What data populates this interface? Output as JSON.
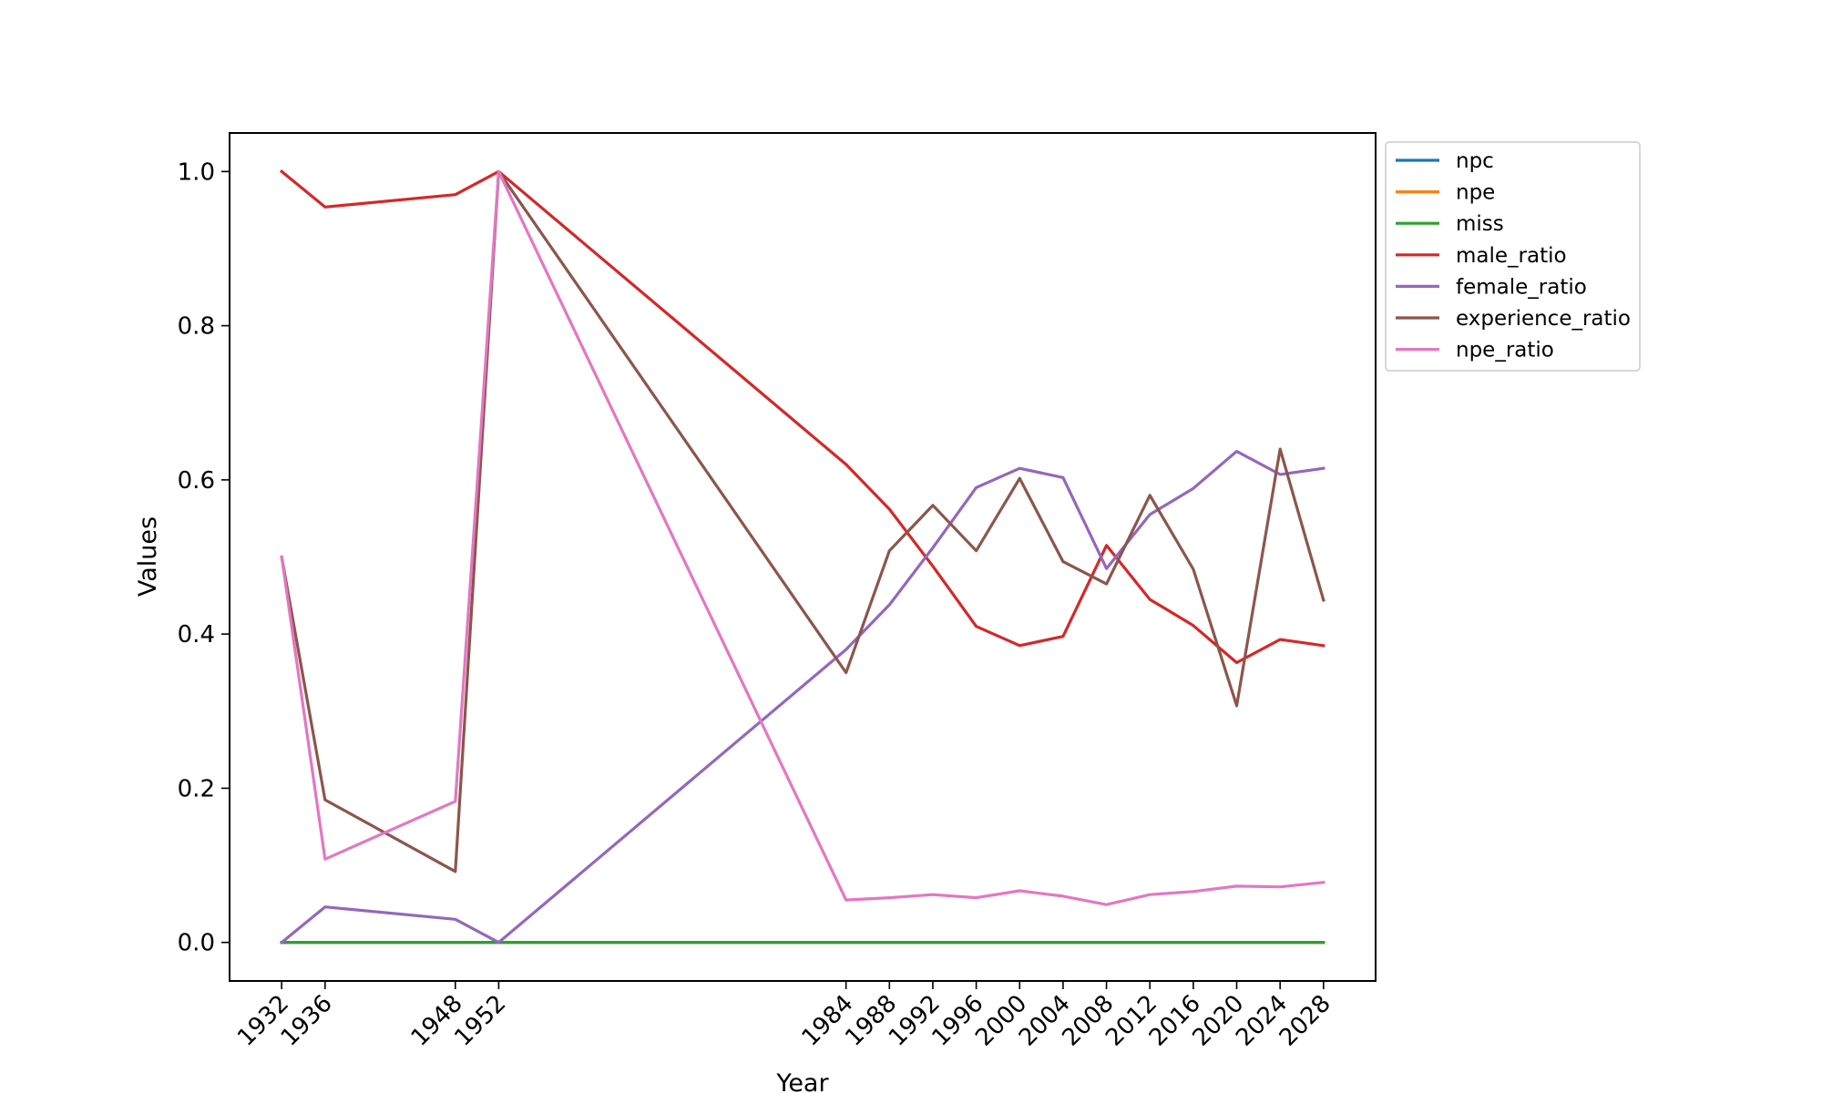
{
  "chart_data": {
    "type": "line",
    "title": "",
    "xlabel": "Year",
    "ylabel": "Values",
    "x": [
      1932,
      1936,
      1948,
      1952,
      1984,
      1988,
      1992,
      1996,
      2000,
      2004,
      2008,
      2012,
      2016,
      2020,
      2024,
      2028
    ],
    "xticks": [
      "1932",
      "1936",
      "1948",
      "1952",
      "1984",
      "1988",
      "1992",
      "1996",
      "2000",
      "2004",
      "2008",
      "2012",
      "2016",
      "2020",
      "2024",
      "2028"
    ],
    "yticks": [
      "0.0",
      "0.2",
      "0.4",
      "0.6",
      "0.8",
      "1.0"
    ],
    "ylim": [
      -0.05,
      1.05
    ],
    "xlim": [
      1927.2,
      2032.8
    ],
    "grid": false,
    "legend_position": "outside-top-right",
    "series": [
      {
        "name": "npc",
        "color": "#1f77b4",
        "values": [
          0,
          0,
          0,
          0,
          0,
          0,
          0,
          0,
          0,
          0,
          0,
          0,
          0,
          0,
          0,
          0
        ]
      },
      {
        "name": "npe",
        "color": "#ff7f0e",
        "values": [
          0,
          0,
          0,
          0,
          0,
          0,
          0,
          0,
          0,
          0,
          0,
          0,
          0,
          0,
          0,
          0
        ]
      },
      {
        "name": "miss",
        "color": "#2ca02c",
        "values": [
          0,
          0,
          0,
          0,
          0,
          0,
          0,
          0,
          0,
          0,
          0,
          0,
          0,
          0,
          0,
          0
        ]
      },
      {
        "name": "male_ratio",
        "color": "#d62728",
        "values": [
          1.0,
          0.954,
          0.97,
          1.0,
          0.62,
          0.562,
          0.488,
          0.41,
          0.385,
          0.397,
          0.515,
          0.445,
          0.411,
          0.363,
          0.393,
          0.385
        ]
      },
      {
        "name": "female_ratio",
        "color": "#9467bd",
        "values": [
          0.0,
          0.046,
          0.03,
          0.0,
          0.38,
          0.438,
          0.512,
          0.59,
          0.615,
          0.603,
          0.485,
          0.555,
          0.589,
          0.637,
          0.607,
          0.615
        ]
      },
      {
        "name": "experience_ratio",
        "color": "#8c564b",
        "values": [
          0.5,
          0.185,
          0.092,
          1.0,
          0.35,
          0.508,
          0.567,
          0.508,
          0.602,
          0.494,
          0.465,
          0.58,
          0.484,
          0.307,
          0.64,
          0.444
        ]
      },
      {
        "name": "npe_ratio",
        "color": "#e377c2",
        "values": [
          0.5,
          0.108,
          0.183,
          1.0,
          0.055,
          0.058,
          0.062,
          0.058,
          0.067,
          0.06,
          0.049,
          0.062,
          0.066,
          0.073,
          0.072,
          0.078
        ]
      }
    ]
  }
}
